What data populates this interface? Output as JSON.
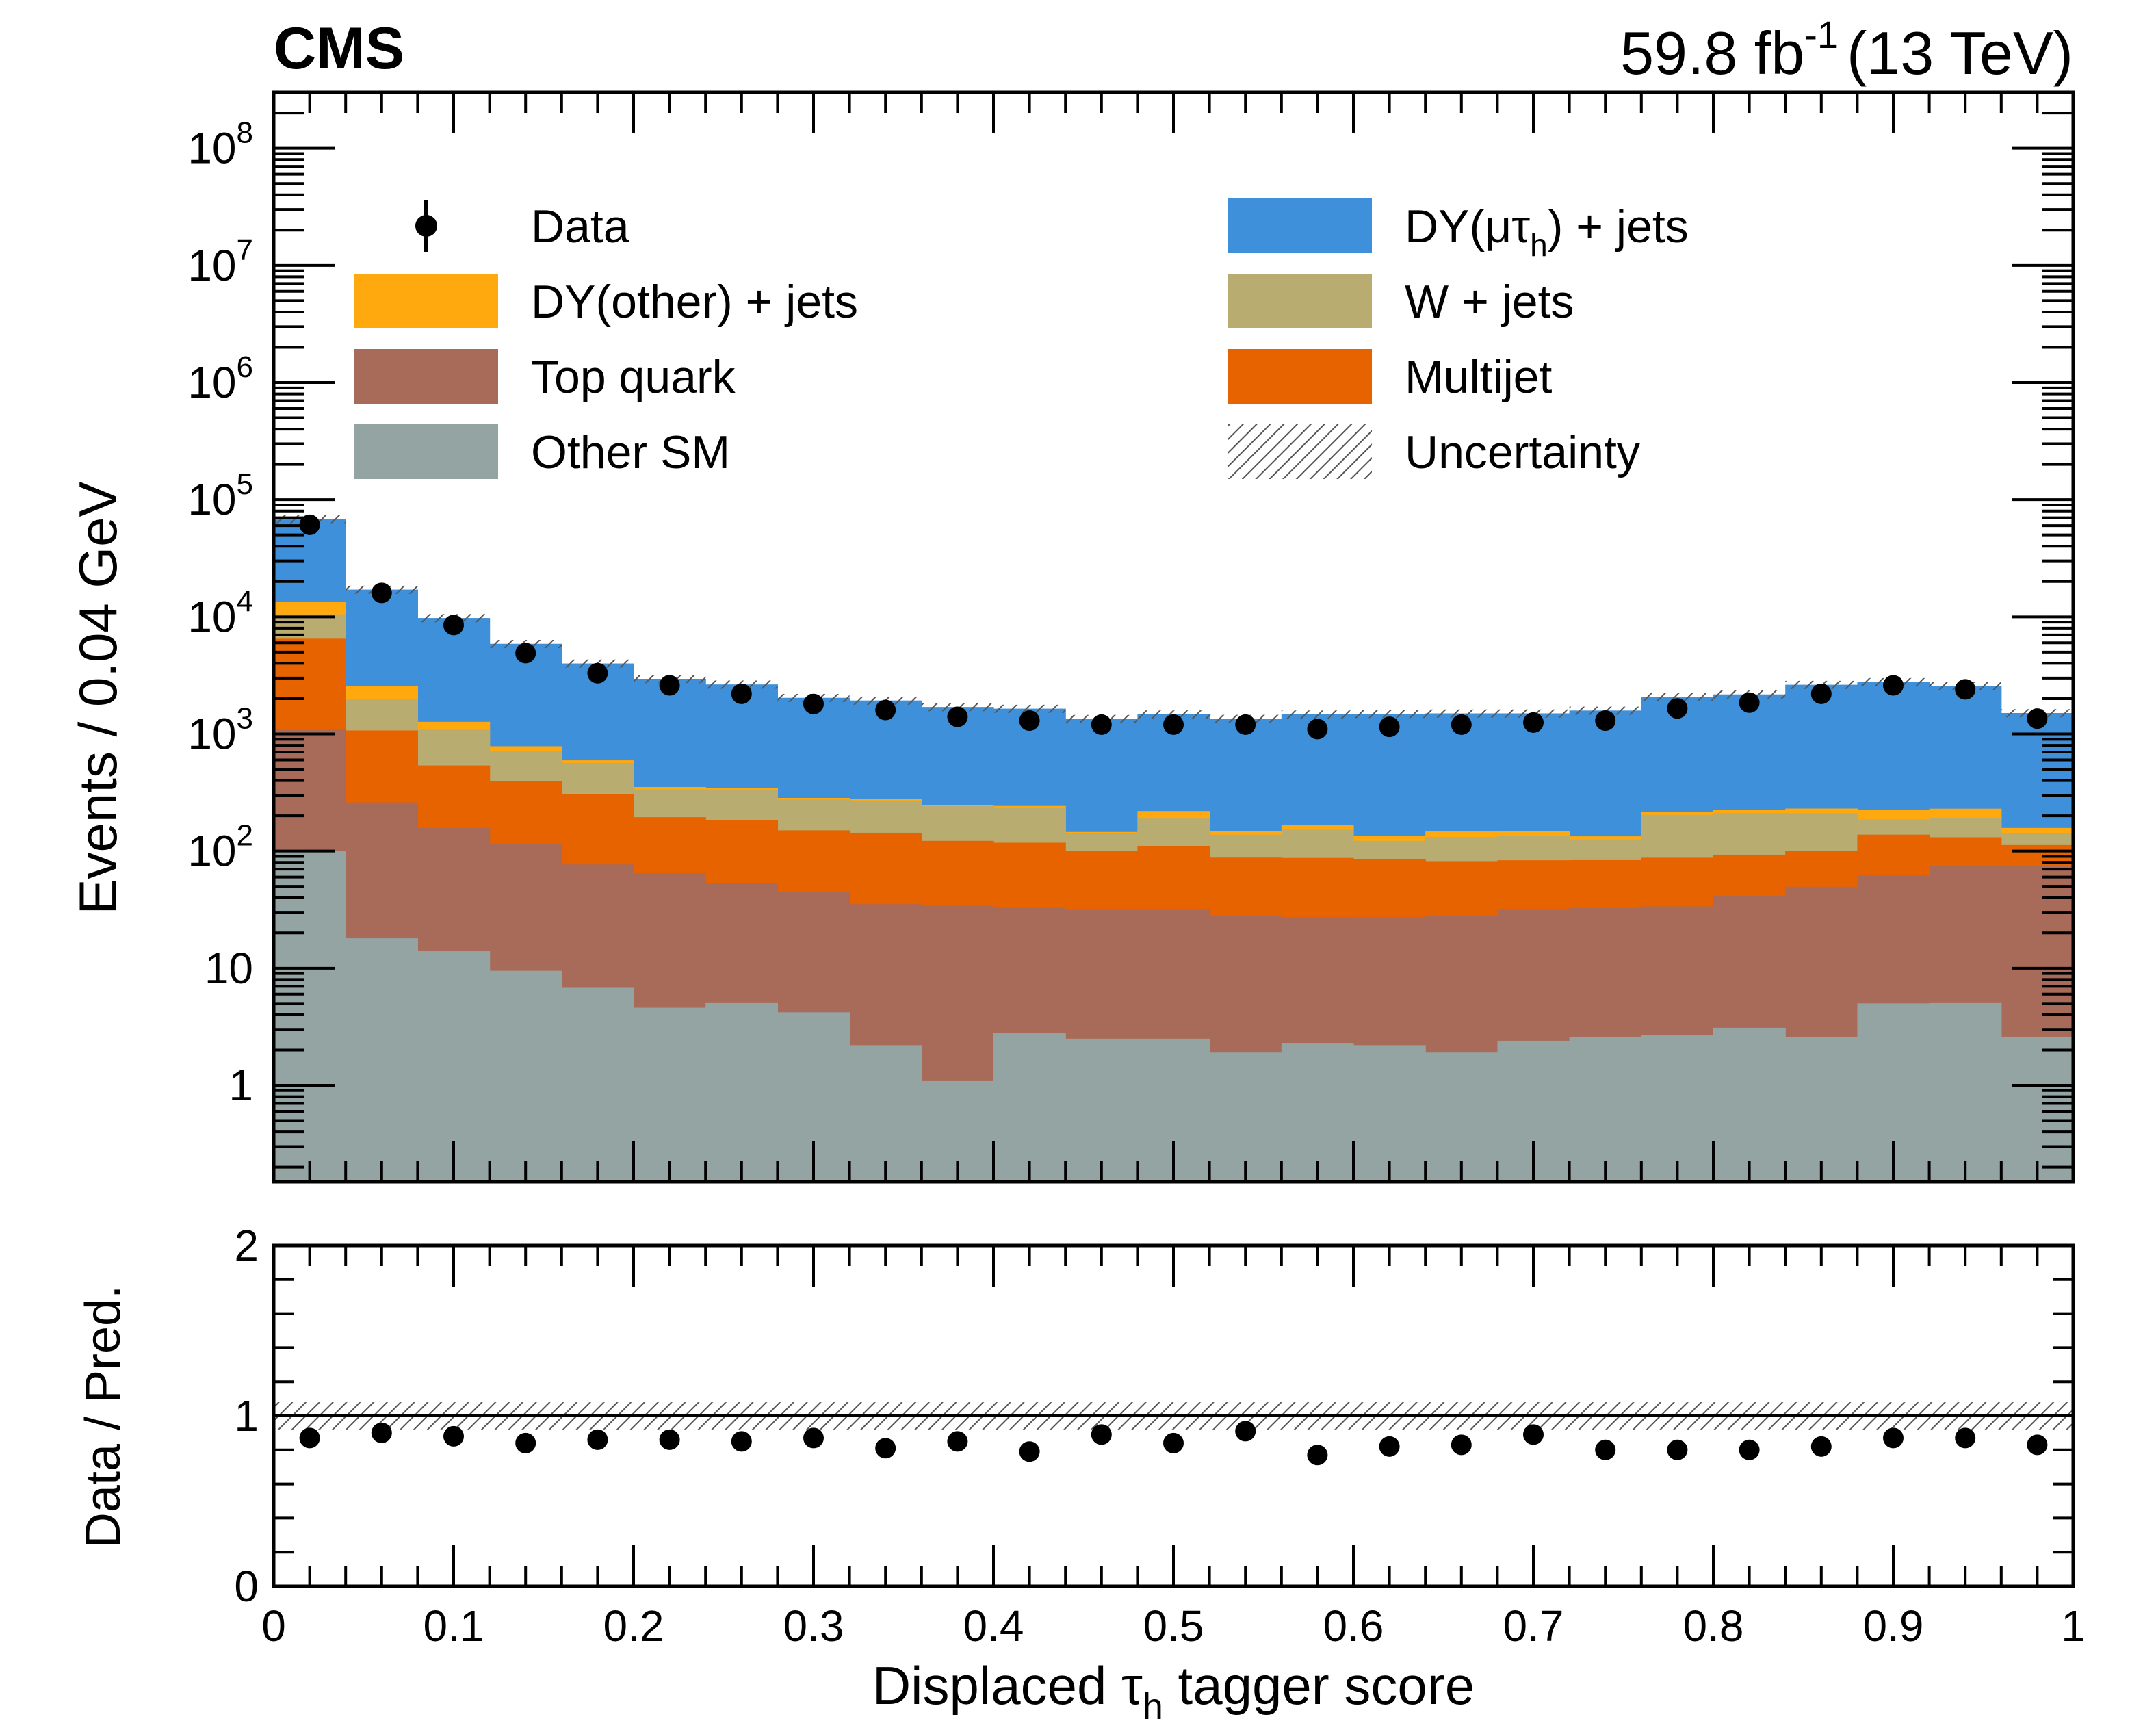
{
  "header": {
    "experiment": "CMS",
    "lumi": "59.8 fb",
    "lumi_exponent": "-1",
    "energy": "(13 TeV)"
  },
  "chart_data": {
    "type": "stacked-histogram-with-ratio",
    "x_axis": {
      "label_prefix": "Displaced ",
      "label_symbol": "τ",
      "label_subscript": "h",
      "label_suffix": " tagger score",
      "range": [
        0,
        1
      ],
      "bin_width": 0.04,
      "ticks": [
        {
          "value": 0,
          "label": "0"
        },
        {
          "value": 0.1,
          "label": "0.1"
        },
        {
          "value": 0.2,
          "label": "0.2"
        },
        {
          "value": 0.3,
          "label": "0.3"
        },
        {
          "value": 0.4,
          "label": "0.4"
        },
        {
          "value": 0.5,
          "label": "0.5"
        },
        {
          "value": 0.6,
          "label": "0.6"
        },
        {
          "value": 0.7,
          "label": "0.7"
        },
        {
          "value": 0.8,
          "label": "0.8"
        },
        {
          "value": 0.9,
          "label": "0.9"
        },
        {
          "value": 1,
          "label": "1"
        }
      ]
    },
    "main_panel": {
      "ylabel": "Events / 0.04 GeV",
      "yscale": "log",
      "ylim": [
        0.15,
        300000000
      ],
      "y_ticks": [
        {
          "value": 1,
          "base": "1",
          "exp": ""
        },
        {
          "value": 10,
          "base": "10",
          "exp": ""
        },
        {
          "value": 100,
          "base": "10",
          "exp": "2"
        },
        {
          "value": 1000,
          "base": "10",
          "exp": "3"
        },
        {
          "value": 10000,
          "base": "10",
          "exp": "4"
        },
        {
          "value": 100000,
          "base": "10",
          "exp": "5"
        },
        {
          "value": 1000000,
          "base": "10",
          "exp": "6"
        },
        {
          "value": 10000000,
          "base": "10",
          "exp": "7"
        },
        {
          "value": 100000000,
          "base": "10",
          "exp": "8"
        }
      ],
      "stack_order_bottom_to_top": [
        "other_sm",
        "top",
        "multijet",
        "wjets",
        "dy_other",
        "dy_mutau"
      ],
      "backgrounds": [
        {
          "key": "other_sm",
          "name": "Other SM",
          "color": "#94a4a2",
          "values": [
            100,
            18,
            14,
            9.5,
            6.8,
            4.6,
            5.1,
            4.2,
            2.2,
            1.1,
            2.8,
            2.5,
            2.5,
            1.9,
            2.3,
            2.2,
            1.9,
            2.4,
            2.6,
            2.7,
            3.1,
            2.6,
            5,
            5.1,
            2.6
          ]
        },
        {
          "key": "top",
          "name": "Top quark",
          "color": "#a96b59",
          "values": [
            1000,
            242,
            144,
            106,
            70,
            60,
            48,
            41,
            33,
            33,
            30,
            29,
            29,
            26,
            25,
            25,
            26,
            29,
            30,
            31,
            38,
            47,
            58,
            70,
            72
          ]
        },
        {
          "key": "multijet",
          "name": "Multijet",
          "color": "#e76300",
          "values": [
            5400,
            810,
            380,
            280,
            228,
            130,
            130,
            105,
            108,
            88,
            85,
            68,
            78,
            60,
            60,
            58,
            54,
            52,
            51,
            54,
            52,
            51,
            75,
            56,
            38
          ]
        },
        {
          "key": "wjets",
          "name": "W + jets",
          "color": "#b9ac70",
          "values": [
            4000,
            900,
            550,
            320,
            260,
            140,
            150,
            125,
            127,
            120,
            115,
            42,
            80,
            50,
            65,
            37,
            50,
            52,
            42,
            116,
            118,
            110,
            48,
            59,
            30
          ]
        },
        {
          "key": "dy_other",
          "name": "DY(other) + jets",
          "color": "#ffa90e",
          "values": [
            3000,
            600,
            180,
            70,
            30,
            18,
            12,
            9,
            8,
            6,
            10,
            4,
            30,
            10,
            15,
            13,
            15,
            12,
            8,
            12,
            14,
            20,
            40,
            40,
            15
          ]
        },
        {
          "key": "dy_mutau",
          "name": "DY(μτh) + jets",
          "color": "#3f90da",
          "values": [
            55000,
            14500,
            8500,
            5100,
            3400,
            2600,
            2300,
            1750,
            1650,
            1450,
            1400,
            1200,
            1250,
            1200,
            1300,
            1350,
            1350,
            1350,
            1450,
            1850,
            1950,
            2400,
            2550,
            2350,
            1350
          ]
        }
      ],
      "data_points": [
        61000,
        16000,
        8500,
        4900,
        3300,
        2600,
        2200,
        1800,
        1600,
        1400,
        1300,
        1200,
        1200,
        1200,
        1100,
        1150,
        1200,
        1250,
        1300,
        1650,
        1850,
        2200,
        2600,
        2400,
        1350
      ],
      "legend": {
        "placement": "top",
        "entries": [
          {
            "key": "data",
            "label": "Data",
            "style": "marker"
          },
          {
            "key": "dy_mutau",
            "label_parts": [
              "DY(μτ",
              "h",
              ") + jets"
            ],
            "style": "fill",
            "color": "#3f90da"
          },
          {
            "key": "dy_other",
            "label": "DY(other) + jets",
            "style": "fill",
            "color": "#ffa90e"
          },
          {
            "key": "wjets",
            "label": "W + jets",
            "style": "fill",
            "color": "#b9ac70"
          },
          {
            "key": "top",
            "label": "Top quark",
            "style": "fill",
            "color": "#a96b59"
          },
          {
            "key": "multijet",
            "label": "Multijet",
            "style": "fill",
            "color": "#e76300"
          },
          {
            "key": "other_sm",
            "label": "Other SM",
            "style": "fill",
            "color": "#94a4a2"
          },
          {
            "key": "unc",
            "label": "Uncertainty",
            "style": "hatch",
            "color": "#555555"
          }
        ]
      }
    },
    "ratio_panel": {
      "ylabel": "Data / Pred.",
      "ylim": [
        0,
        2
      ],
      "y_ticks": [
        {
          "value": 0,
          "label": "0"
        },
        {
          "value": 1,
          "label": "1"
        },
        {
          "value": 2,
          "label": "2"
        }
      ],
      "reference_line": 1,
      "uncertainty_band": [
        0.92,
        1.08
      ],
      "values": [
        0.87,
        0.9,
        0.88,
        0.84,
        0.86,
        0.86,
        0.85,
        0.87,
        0.81,
        0.85,
        0.79,
        0.89,
        0.84,
        0.91,
        0.77,
        0.82,
        0.83,
        0.89,
        0.8,
        0.8,
        0.8,
        0.82,
        0.87,
        0.87,
        0.83
      ]
    }
  }
}
